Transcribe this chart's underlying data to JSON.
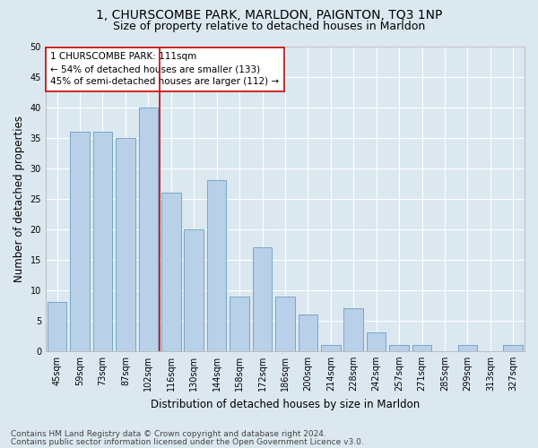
{
  "title1": "1, CHURSCOMBE PARK, MARLDON, PAIGNTON, TQ3 1NP",
  "title2": "Size of property relative to detached houses in Marldon",
  "xlabel": "Distribution of detached houses by size in Marldon",
  "ylabel": "Number of detached properties",
  "categories": [
    "45sqm",
    "59sqm",
    "73sqm",
    "87sqm",
    "102sqm",
    "116sqm",
    "130sqm",
    "144sqm",
    "158sqm",
    "172sqm",
    "186sqm",
    "200sqm",
    "214sqm",
    "228sqm",
    "242sqm",
    "257sqm",
    "271sqm",
    "285sqm",
    "299sqm",
    "313sqm",
    "327sqm"
  ],
  "values": [
    8,
    36,
    36,
    35,
    40,
    26,
    20,
    28,
    9,
    17,
    9,
    6,
    1,
    7,
    3,
    1,
    1,
    0,
    1,
    0,
    1
  ],
  "bar_color": "#b8d0e8",
  "bar_edge_color": "#6b9dc2",
  "annotation_line1": "1 CHURSCOMBE PARK: 111sqm",
  "annotation_line2": "← 54% of detached houses are smaller (133)",
  "annotation_line3": "45% of semi-detached houses are larger (112) →",
  "vline_color": "#cc0000",
  "ylim": [
    0,
    50
  ],
  "yticks": [
    0,
    5,
    10,
    15,
    20,
    25,
    30,
    35,
    40,
    45,
    50
  ],
  "footer1": "Contains HM Land Registry data © Crown copyright and database right 2024.",
  "footer2": "Contains public sector information licensed under the Open Government Licence v3.0.",
  "bg_color": "#dce8f0",
  "plot_bg_color": "#dce8f0",
  "grid_color": "#ffffff",
  "title1_fontsize": 10,
  "title2_fontsize": 9,
  "annotation_fontsize": 7.5,
  "axis_label_fontsize": 8.5,
  "tick_fontsize": 7,
  "footer_fontsize": 6.5
}
